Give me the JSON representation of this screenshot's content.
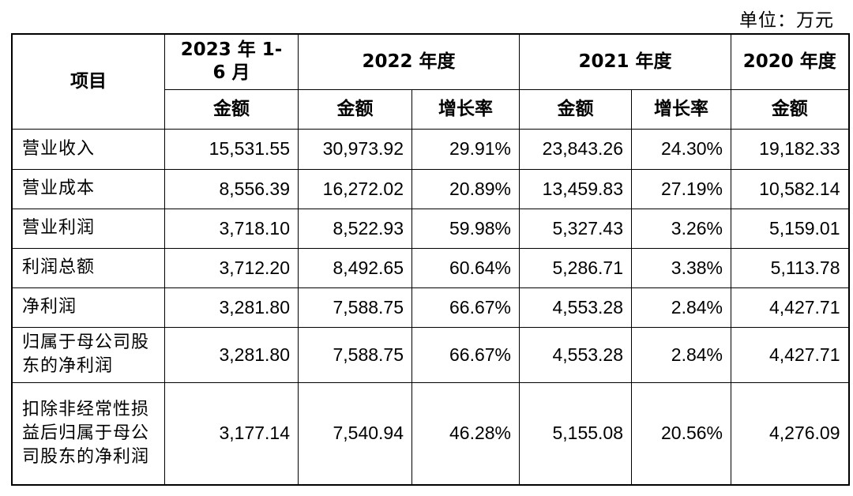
{
  "unit_label": "单位：万元",
  "header": {
    "item": "项目",
    "periods": [
      "2023 年 1-6 月",
      "2022 年度",
      "2021 年度",
      "2020 年度"
    ],
    "sub": {
      "amount": "金额",
      "growth": "增长率"
    }
  },
  "rows": [
    {
      "item": "营业收入",
      "v2023h1": "15,531.55",
      "v2022": "30,973.92",
      "g2022": "29.91%",
      "v2021": "23,843.26",
      "g2021": "24.30%",
      "v2020": "19,182.33"
    },
    {
      "item": "营业成本",
      "v2023h1": "8,556.39",
      "v2022": "16,272.02",
      "g2022": "20.89%",
      "v2021": "13,459.83",
      "g2021": "27.19%",
      "v2020": "10,582.14"
    },
    {
      "item": "营业利润",
      "v2023h1": "3,718.10",
      "v2022": "8,522.93",
      "g2022": "59.98%",
      "v2021": "5,327.43",
      "g2021": "3.26%",
      "v2020": "5,159.01"
    },
    {
      "item": "利润总额",
      "v2023h1": "3,712.20",
      "v2022": "8,492.65",
      "g2022": "60.64%",
      "v2021": "5,286.71",
      "g2021": "3.38%",
      "v2020": "5,113.78"
    },
    {
      "item": "净利润",
      "v2023h1": "3,281.80",
      "v2022": "7,588.75",
      "g2022": "66.67%",
      "v2021": "4,553.28",
      "g2021": "2.84%",
      "v2020": "4,427.71"
    },
    {
      "item": "归属于母公司股东的净利润",
      "v2023h1": "3,281.80",
      "v2022": "7,588.75",
      "g2022": "66.67%",
      "v2021": "4,553.28",
      "g2021": "2.84%",
      "v2020": "4,427.71"
    },
    {
      "item": "扣除非经常性损益后归属于母公司股东的净利润",
      "v2023h1": "3,177.14",
      "v2022": "7,540.94",
      "g2022": "46.28%",
      "v2021": "5,155.08",
      "g2021": "20.56%",
      "v2020": "4,276.09"
    }
  ]
}
